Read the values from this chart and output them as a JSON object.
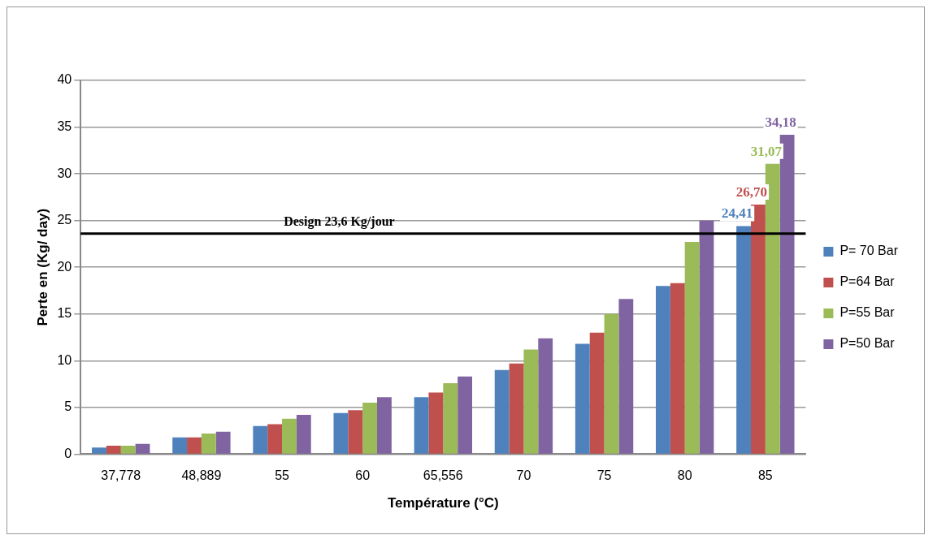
{
  "chart_data": {
    "type": "bar",
    "xlabel": "Température (°C)",
    "ylabel": "Perte en (Kg/ day)",
    "categories": [
      "37,778",
      "48,889",
      "55",
      "60",
      "65,556",
      "70",
      "75",
      "80",
      "85"
    ],
    "series": [
      {
        "name": "P= 70 Bar",
        "color": "#4f81bd",
        "values": [
          0.7,
          1.8,
          3.0,
          4.4,
          6.1,
          9.0,
          11.8,
          18.0,
          24.41
        ],
        "value_labels": [
          null,
          null,
          null,
          null,
          null,
          null,
          null,
          null,
          "24,41"
        ]
      },
      {
        "name": "P=64 Bar",
        "color": "#c0504d",
        "values": [
          0.9,
          1.8,
          3.2,
          4.7,
          6.6,
          9.7,
          13.0,
          18.3,
          26.7
        ],
        "value_labels": [
          null,
          null,
          null,
          null,
          null,
          null,
          null,
          null,
          "26,70"
        ]
      },
      {
        "name": "P=55 Bar",
        "color": "#9bbb59",
        "values": [
          0.9,
          2.2,
          3.8,
          5.5,
          7.6,
          11.2,
          15.0,
          22.7,
          31.07
        ],
        "value_labels": [
          null,
          null,
          null,
          null,
          null,
          null,
          null,
          null,
          "31,07"
        ]
      },
      {
        "name": "P=50 Bar",
        "color": "#8064a2",
        "values": [
          1.1,
          2.4,
          4.2,
          6.1,
          8.3,
          12.4,
          16.6,
          25.0,
          34.18
        ],
        "value_labels": [
          null,
          null,
          null,
          null,
          null,
          null,
          null,
          null,
          "34,18"
        ]
      }
    ],
    "ylim": [
      0,
      40
    ],
    "yticks": [
      0,
      5,
      10,
      15,
      20,
      25,
      30,
      35,
      40
    ],
    "grid": "y",
    "legend": "right",
    "ref_lines": [
      {
        "axis": "y",
        "value": 23.6,
        "label": "Design 23,6 Kg/jour",
        "color": "#000000"
      }
    ]
  }
}
